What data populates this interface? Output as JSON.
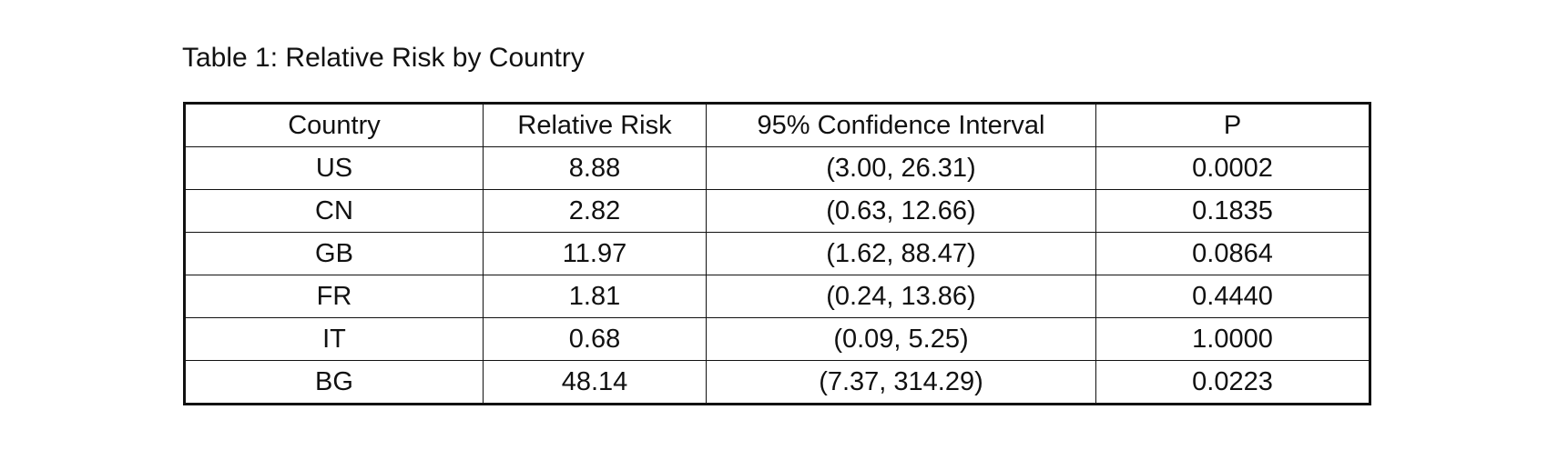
{
  "caption": "Table 1: Relative Risk by Country",
  "table": {
    "headers": [
      "Country",
      "Relative Risk",
      "95% Confidence Interval",
      "P"
    ],
    "rows": [
      [
        "US",
        "8.88",
        "(3.00, 26.31)",
        "0.0002"
      ],
      [
        "CN",
        "2.82",
        "(0.63, 12.66)",
        "0.1835"
      ],
      [
        "GB",
        "11.97",
        "(1.62, 88.47)",
        "0.0864"
      ],
      [
        "FR",
        "1.81",
        "(0.24, 13.86)",
        "0.4440"
      ],
      [
        "IT",
        "0.68",
        "(0.09, 5.25)",
        "1.0000"
      ],
      [
        "BG",
        "48.14",
        "(7.37, 314.29)",
        "0.0223"
      ]
    ]
  }
}
